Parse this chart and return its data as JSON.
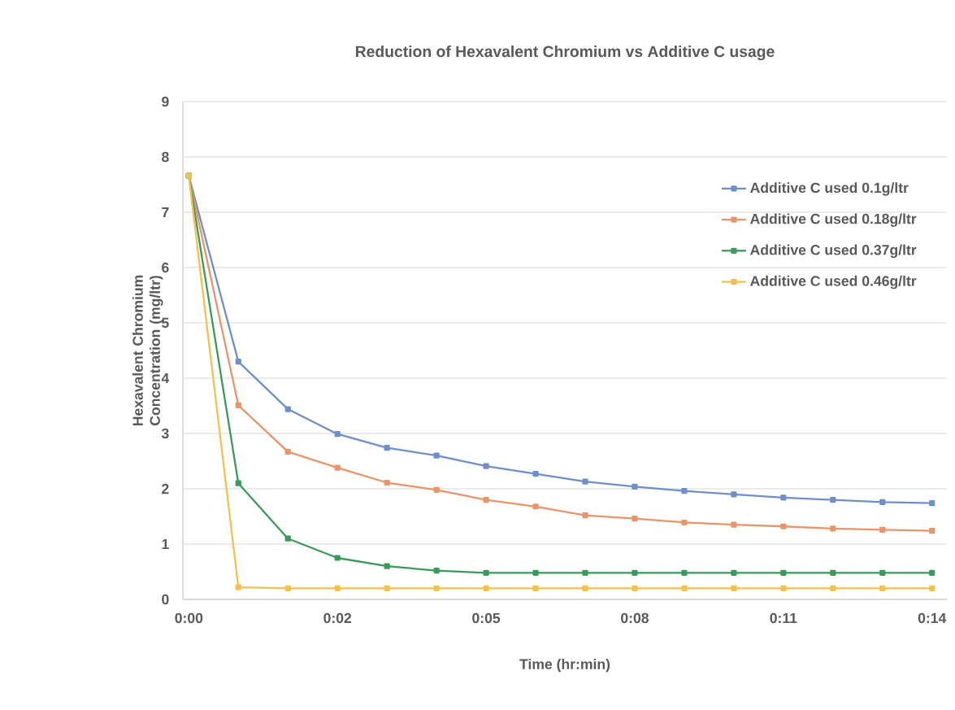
{
  "chart_data": {
    "type": "line",
    "title": "Reduction of Hexavalent Chromium vs Additive C usage",
    "xlabel": "Time (hr:min)",
    "ylabel": "Hexavalent Chromium Concentration (mg/ltr)",
    "categories": [
      "0:00",
      null,
      null,
      "0:02",
      null,
      null,
      "0:05",
      null,
      null,
      "0:08",
      null,
      null,
      "0:11",
      null,
      null,
      "0:14"
    ],
    "series": [
      {
        "name": "Additive C used  0.1g/ltr",
        "color": "#6f8fc8",
        "values": [
          7.66,
          4.3,
          3.44,
          2.99,
          2.74,
          2.6,
          2.41,
          2.27,
          2.13,
          2.04,
          1.96,
          1.9,
          1.84,
          1.8,
          1.76,
          1.74
        ]
      },
      {
        "name": "Additive C used  0.18g/ltr",
        "color": "#e8956a",
        "values": [
          7.66,
          3.51,
          2.67,
          2.38,
          2.11,
          1.98,
          1.8,
          1.68,
          1.52,
          1.46,
          1.39,
          1.35,
          1.32,
          1.28,
          1.26,
          1.24
        ]
      },
      {
        "name": "Additive C used  0.37g/ltr",
        "color": "#3a9a5a",
        "values": [
          7.66,
          2.1,
          1.1,
          0.75,
          0.6,
          0.52,
          0.48,
          0.48,
          0.48,
          0.48,
          0.48,
          0.48,
          0.48,
          0.48,
          0.48,
          0.48
        ]
      },
      {
        "name": "Additive C used  0.46g/ltr",
        "color": "#f2c14e",
        "values": [
          7.66,
          0.22,
          0.2,
          0.2,
          0.2,
          0.2,
          0.2,
          0.2,
          0.2,
          0.2,
          0.2,
          0.2,
          0.2,
          0.2,
          0.2,
          0.2
        ]
      }
    ],
    "ylim": [
      0,
      9
    ],
    "yticks": [
      0,
      1,
      2,
      3,
      4,
      5,
      6,
      7,
      8,
      9
    ],
    "grid": "y",
    "legend": "top right",
    "marker": "square",
    "line_style": "solid"
  }
}
